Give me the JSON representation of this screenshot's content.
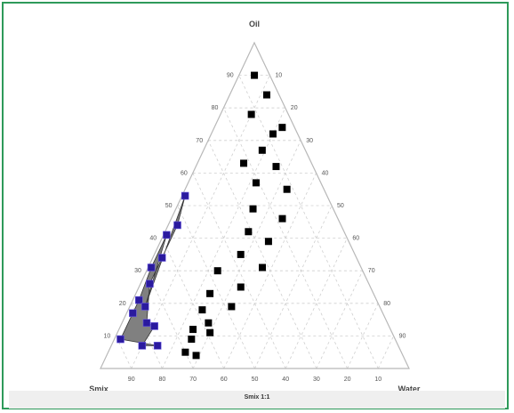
{
  "chart_data": {
    "type": "scatter",
    "subtype": "ternary",
    "caption": "Smix 1:1",
    "axes": {
      "top": "Oil",
      "bottom_left": "Smix",
      "bottom_right": "Water"
    },
    "ticks": {
      "left": [
        "10",
        "20",
        "30",
        "40",
        "50",
        "60",
        "70",
        "80",
        "90"
      ],
      "right": [
        "10",
        "20",
        "30",
        "40",
        "50",
        "60",
        "70",
        "80",
        "90"
      ],
      "bottom": [
        "90",
        "80",
        "70",
        "60",
        "50",
        "40",
        "30",
        "20",
        "10"
      ]
    },
    "grid": true,
    "colors": {
      "region": "#808080",
      "boundary_marker": "#2a1a9e",
      "point": "#000000",
      "frame": "#2e9a5a"
    },
    "region_boundary": [
      {
        "oil": 53,
        "smix": 46,
        "water": 1
      },
      {
        "oil": 44,
        "smix": 53,
        "water": 3
      },
      {
        "oil": 34,
        "smix": 63,
        "water": 3
      },
      {
        "oil": 26,
        "smix": 71,
        "water": 3
      },
      {
        "oil": 14,
        "smix": 78,
        "water": 8
      },
      {
        "oil": 13,
        "smix": 76,
        "water": 11
      },
      {
        "oil": 7,
        "smix": 83,
        "water": 10
      },
      {
        "oil": 7,
        "smix": 78,
        "water": 15
      },
      {
        "oil": 9,
        "smix": 89,
        "water": 2
      },
      {
        "oil": 17,
        "smix": 81,
        "water": 2
      },
      {
        "oil": 21,
        "smix": 77,
        "water": 2
      },
      {
        "oil": 31,
        "smix": 68,
        "water": 1
      },
      {
        "oil": 41,
        "smix": 58,
        "water": 1
      },
      {
        "oil": 19,
        "smix": 76,
        "water": 5
      }
    ],
    "points": [
      {
        "oil": 90,
        "smix": 5,
        "water": 5
      },
      {
        "oil": 84,
        "smix": 4,
        "water": 12
      },
      {
        "oil": 78,
        "smix": 12,
        "water": 10
      },
      {
        "oil": 74,
        "smix": 4,
        "water": 22
      },
      {
        "oil": 72,
        "smix": 8,
        "water": 20
      },
      {
        "oil": 67,
        "smix": 14,
        "water": 19
      },
      {
        "oil": 63,
        "smix": 22,
        "water": 15
      },
      {
        "oil": 62,
        "smix": 12,
        "water": 26
      },
      {
        "oil": 57,
        "smix": 21,
        "water": 22
      },
      {
        "oil": 55,
        "smix": 12,
        "water": 33
      },
      {
        "oil": 49,
        "smix": 26,
        "water": 25
      },
      {
        "oil": 46,
        "smix": 18,
        "water": 36
      },
      {
        "oil": 42,
        "smix": 31,
        "water": 27
      },
      {
        "oil": 39,
        "smix": 26,
        "water": 35
      },
      {
        "oil": 35,
        "smix": 37,
        "water": 28
      },
      {
        "oil": 31,
        "smix": 32,
        "water": 37
      },
      {
        "oil": 30,
        "smix": 47,
        "water": 23
      },
      {
        "oil": 25,
        "smix": 42,
        "water": 33
      },
      {
        "oil": 23,
        "smix": 53,
        "water": 24
      },
      {
        "oil": 19,
        "smix": 48,
        "water": 33
      },
      {
        "oil": 18,
        "smix": 58,
        "water": 24
      },
      {
        "oil": 14,
        "smix": 58,
        "water": 28
      },
      {
        "oil": 12,
        "smix": 64,
        "water": 24
      },
      {
        "oil": 11,
        "smix": 59,
        "water": 30
      },
      {
        "oil": 9,
        "smix": 66,
        "water": 25
      },
      {
        "oil": 5,
        "smix": 70,
        "water": 25
      },
      {
        "oil": 4,
        "smix": 67,
        "water": 29
      }
    ]
  }
}
